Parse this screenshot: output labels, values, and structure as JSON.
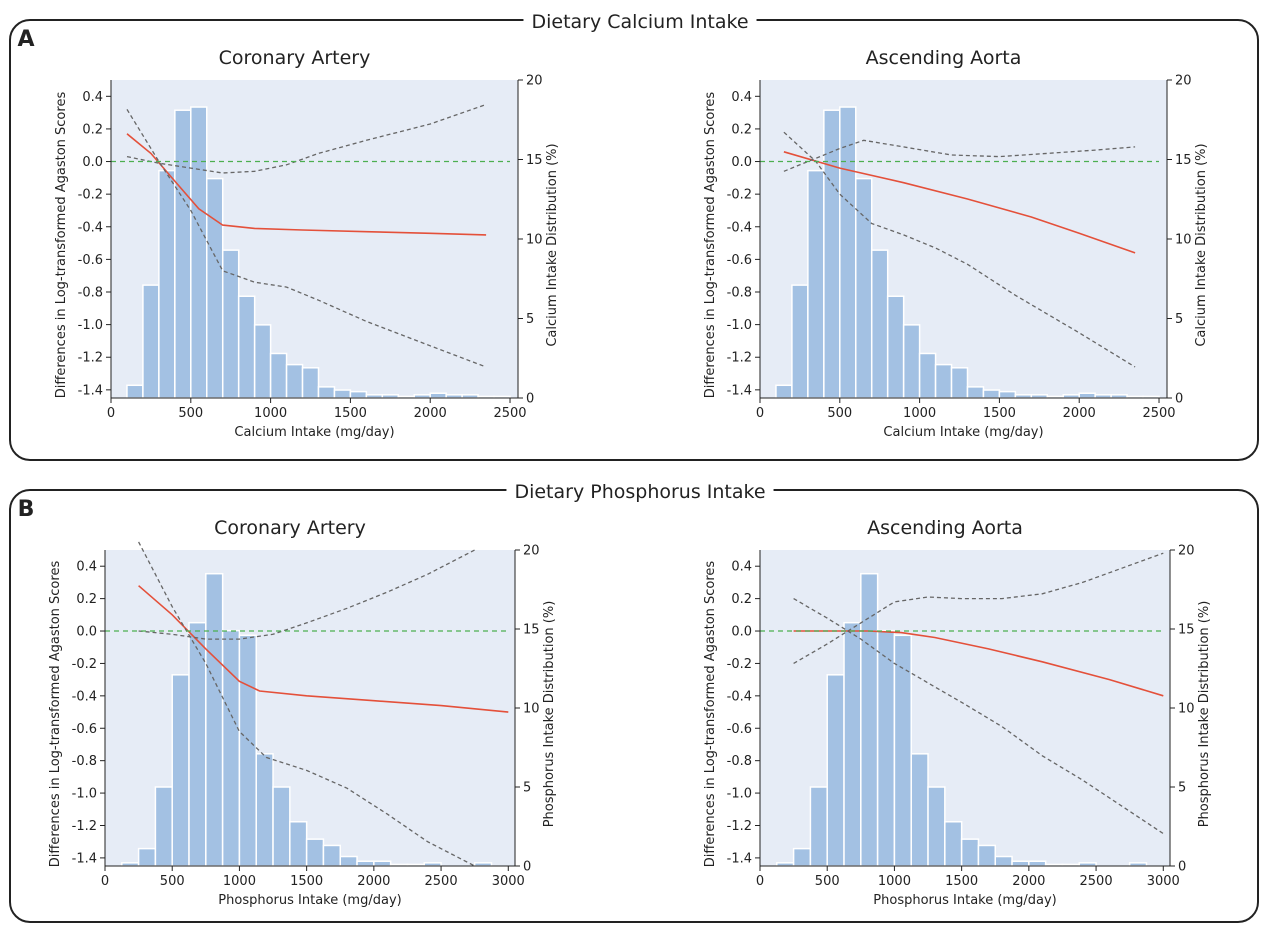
{
  "sections": [
    {
      "letter": "A",
      "title": "Dietary Calcium Intake"
    },
    {
      "letter": "B",
      "title": "Dietary Phosphorus Intake"
    }
  ],
  "chart_data": [
    {
      "type": "bar",
      "panel": "A",
      "title": "Coronary Artery",
      "xlabel": "Calcium Intake (mg/day)",
      "ylabel": "Differences in Log-transformed Agaston Scores",
      "ylabel_right": "Calcium Intake Distribution (%)",
      "xlim": [
        0,
        2550
      ],
      "ylim": [
        -1.45,
        0.5
      ],
      "ylim_right": [
        0,
        20
      ],
      "x_ticks": [
        0,
        500,
        1000,
        1500,
        2000,
        2500
      ],
      "y_ticks": [
        0.4,
        0.2,
        0.0,
        -0.2,
        -0.4,
        -0.6,
        -0.8,
        -1.0,
        -1.2,
        -1.4
      ],
      "y_ticks_right": [
        0,
        5,
        10,
        15,
        20
      ],
      "histogram": {
        "bin_width": 100,
        "bin_starts": [
          100,
          200,
          300,
          400,
          500,
          600,
          700,
          800,
          900,
          1000,
          1100,
          1200,
          1300,
          1400,
          1500,
          1600,
          1700,
          1800,
          1900,
          2000,
          2100,
          2200,
          2300,
          2400
        ],
        "percent": [
          0.8,
          7.1,
          14.3,
          18.1,
          18.3,
          13.8,
          9.3,
          6.4,
          4.6,
          2.8,
          2.1,
          1.9,
          0.7,
          0.5,
          0.4,
          0.2,
          0.2,
          0.1,
          0.2,
          0.3,
          0.2,
          0.2,
          0.1,
          0.1
        ]
      },
      "series": [
        {
          "style": "solid",
          "color": "#e4503a",
          "x": [
            100,
            250,
            400,
            550,
            700,
            900,
            1200,
            1600,
            2000,
            2350
          ],
          "y": [
            0.17,
            0.05,
            -0.12,
            -0.29,
            -0.39,
            -0.41,
            -0.42,
            -0.43,
            -0.44,
            -0.45
          ]
        },
        {
          "style": "dashed",
          "color": "#666666",
          "x": [
            100,
            300,
            500,
            700,
            900,
            1100,
            1300,
            1600,
            2000,
            2350
          ],
          "y": [
            0.32,
            0.0,
            -0.3,
            -0.67,
            -0.74,
            -0.77,
            -0.85,
            -0.98,
            -1.13,
            -1.26
          ]
        },
        {
          "style": "dashed",
          "color": "#666666",
          "x": [
            100,
            300,
            500,
            700,
            900,
            1100,
            1300,
            1600,
            2000,
            2350
          ],
          "y": [
            0.03,
            -0.01,
            -0.04,
            -0.07,
            -0.06,
            -0.02,
            0.05,
            0.13,
            0.23,
            0.35
          ]
        },
        {
          "style": "dashed",
          "color": "#4caf50",
          "x": [
            0,
            2500
          ],
          "y": [
            0.0,
            0.0
          ]
        }
      ]
    },
    {
      "type": "bar",
      "panel": "A",
      "title": "Ascending Aorta",
      "xlabel": "Calcium Intake (mg/day)",
      "ylabel": "Differences in Log-transformed Agaston Scores",
      "ylabel_right": "Calcium Intake Distribution (%)",
      "xlim": [
        0,
        2550
      ],
      "ylim": [
        -1.45,
        0.5
      ],
      "ylim_right": [
        0,
        20
      ],
      "x_ticks": [
        0,
        500,
        1000,
        1500,
        2000,
        2500
      ],
      "y_ticks": [
        0.4,
        0.2,
        0.0,
        -0.2,
        -0.4,
        -0.6,
        -0.8,
        -1.0,
        -1.2,
        -1.4
      ],
      "y_ticks_right": [
        0,
        5,
        10,
        15,
        20
      ],
      "histogram": {
        "bin_width": 100,
        "bin_starts": [
          100,
          200,
          300,
          400,
          500,
          600,
          700,
          800,
          900,
          1000,
          1100,
          1200,
          1300,
          1400,
          1500,
          1600,
          1700,
          1800,
          1900,
          2000,
          2100,
          2200,
          2300,
          2400
        ],
        "percent": [
          0.8,
          7.1,
          14.3,
          18.1,
          18.3,
          13.8,
          9.3,
          6.4,
          4.6,
          2.8,
          2.1,
          1.9,
          0.7,
          0.5,
          0.4,
          0.2,
          0.2,
          0.1,
          0.2,
          0.3,
          0.2,
          0.2,
          0.1,
          0.1
        ]
      },
      "series": [
        {
          "style": "solid",
          "color": "#e4503a",
          "x": [
            150,
            500,
            900,
            1300,
            1700,
            2000,
            2350
          ],
          "y": [
            0.06,
            -0.04,
            -0.13,
            -0.23,
            -0.34,
            -0.44,
            -0.56
          ]
        },
        {
          "style": "dashed",
          "color": "#666666",
          "x": [
            150,
            350,
            500,
            700,
            900,
            1100,
            1300,
            1600,
            2000,
            2350
          ],
          "y": [
            0.18,
            0.0,
            -0.2,
            -0.38,
            -0.45,
            -0.53,
            -0.63,
            -0.82,
            -1.05,
            -1.26
          ]
        },
        {
          "style": "dashed",
          "color": "#666666",
          "x": [
            150,
            350,
            500,
            650,
            900,
            1200,
            1500,
            1800,
            2100,
            2350
          ],
          "y": [
            -0.06,
            0.02,
            0.08,
            0.13,
            0.09,
            0.04,
            0.03,
            0.05,
            0.07,
            0.09
          ]
        },
        {
          "style": "dashed",
          "color": "#4caf50",
          "x": [
            0,
            2500
          ],
          "y": [
            0.0,
            0.0
          ]
        }
      ]
    },
    {
      "type": "bar",
      "panel": "B",
      "title": "Coronary Artery",
      "xlabel": "Phosphorus Intake (mg/day)",
      "ylabel": "Differences in Log-transformed Agaston Scores",
      "ylabel_right": "Phosphorus Intake Distribution (%)",
      "xlim": [
        0,
        3050
      ],
      "ylim": [
        -1.45,
        0.5
      ],
      "ylim_right": [
        0,
        20
      ],
      "x_ticks": [
        0,
        500,
        1000,
        1500,
        2000,
        2500,
        3000
      ],
      "y_ticks": [
        0.4,
        0.2,
        0.0,
        -0.2,
        -0.4,
        -0.6,
        -0.8,
        -1.0,
        -1.2,
        -1.4
      ],
      "y_ticks_right": [
        0,
        5,
        10,
        15,
        20
      ],
      "histogram": {
        "bin_width": 125,
        "bin_starts": [
          125,
          250,
          375,
          500,
          625,
          750,
          875,
          1000,
          1125,
          1250,
          1375,
          1500,
          1625,
          1750,
          1875,
          2000,
          2125,
          2250,
          2375,
          2500,
          2625,
          2750,
          2875
        ],
        "percent": [
          0.2,
          1.1,
          5.0,
          12.1,
          15.4,
          18.5,
          14.9,
          14.6,
          7.1,
          5.0,
          2.8,
          1.7,
          1.3,
          0.6,
          0.3,
          0.3,
          0.1,
          0.1,
          0.2,
          0.0,
          0.0,
          0.2,
          0.0
        ]
      },
      "series": [
        {
          "style": "solid",
          "color": "#e4503a",
          "x": [
            250,
            500,
            750,
            1000,
            1150,
            1500,
            2000,
            2500,
            3000
          ],
          "y": [
            0.28,
            0.1,
            -0.11,
            -0.31,
            -0.37,
            -0.4,
            -0.43,
            -0.46,
            -0.5
          ]
        },
        {
          "style": "dashed",
          "color": "#666666",
          "x": [
            250,
            500,
            750,
            1000,
            1200,
            1500,
            1800,
            2100,
            2400,
            2750
          ],
          "y": [
            0.55,
            0.15,
            -0.2,
            -0.62,
            -0.78,
            -0.86,
            -0.97,
            -1.13,
            -1.3,
            -1.45
          ]
        },
        {
          "style": "dashed",
          "color": "#666666",
          "x": [
            250,
            500,
            750,
            1000,
            1250,
            1500,
            1800,
            2100,
            2400,
            2750
          ],
          "y": [
            0.0,
            -0.02,
            -0.05,
            -0.05,
            -0.02,
            0.05,
            0.14,
            0.24,
            0.35,
            0.5
          ]
        },
        {
          "style": "dashed",
          "color": "#4caf50",
          "x": [
            0,
            3000
          ],
          "y": [
            0.0,
            0.0
          ]
        }
      ]
    },
    {
      "type": "bar",
      "panel": "B",
      "title": "Ascending Aorta",
      "xlabel": "Phosphorus Intake (mg/day)",
      "ylabel": "Differences in Log-transformed Agaston Scores",
      "ylabel_right": "Phosphorus Intake Distribution (%)",
      "xlim": [
        0,
        3050
      ],
      "ylim": [
        -1.45,
        0.5
      ],
      "ylim_right": [
        0,
        20
      ],
      "x_ticks": [
        0,
        500,
        1000,
        1500,
        2000,
        2500,
        3000
      ],
      "y_ticks": [
        0.4,
        0.2,
        0.0,
        -0.2,
        -0.4,
        -0.6,
        -0.8,
        -1.0,
        -1.2,
        -1.4
      ],
      "y_ticks_right": [
        0,
        5,
        10,
        15,
        20
      ],
      "histogram": {
        "bin_width": 125,
        "bin_starts": [
          125,
          250,
          375,
          500,
          625,
          750,
          875,
          1000,
          1125,
          1250,
          1375,
          1500,
          1625,
          1750,
          1875,
          2000,
          2125,
          2250,
          2375,
          2500,
          2625,
          2750,
          2875
        ],
        "percent": [
          0.2,
          1.1,
          5.0,
          12.1,
          15.4,
          18.5,
          14.9,
          14.6,
          7.1,
          5.0,
          2.8,
          1.7,
          1.3,
          0.6,
          0.3,
          0.3,
          0.1,
          0.1,
          0.2,
          0.0,
          0.0,
          0.2,
          0.0
        ]
      },
      "series": [
        {
          "style": "solid",
          "color": "#e4503a",
          "x": [
            250,
            600,
            800,
            1050,
            1300,
            1700,
            2100,
            2600,
            3000
          ],
          "y": [
            0.0,
            0.0,
            0.0,
            -0.01,
            -0.04,
            -0.11,
            -0.19,
            -0.3,
            -0.4
          ]
        },
        {
          "style": "dashed",
          "color": "#666666",
          "x": [
            250,
            500,
            750,
            1000,
            1250,
            1500,
            1800,
            2100,
            2400,
            3000
          ],
          "y": [
            0.2,
            0.08,
            -0.05,
            -0.2,
            -0.32,
            -0.44,
            -0.59,
            -0.77,
            -0.92,
            -1.25
          ]
        },
        {
          "style": "dashed",
          "color": "#666666",
          "x": [
            250,
            500,
            750,
            1000,
            1250,
            1500,
            1800,
            2100,
            2400,
            3000
          ],
          "y": [
            -0.2,
            -0.08,
            0.05,
            0.18,
            0.21,
            0.2,
            0.2,
            0.23,
            0.3,
            0.48
          ]
        },
        {
          "style": "dashed",
          "color": "#4caf50",
          "x": [
            0,
            3000
          ],
          "y": [
            0.0,
            0.0
          ]
        }
      ]
    }
  ],
  "colors": {
    "plot_background": "#e6ecf6",
    "bar_fill": "#a3c1e3",
    "bar_stroke": "#ffffff",
    "frame": "#222222"
  }
}
